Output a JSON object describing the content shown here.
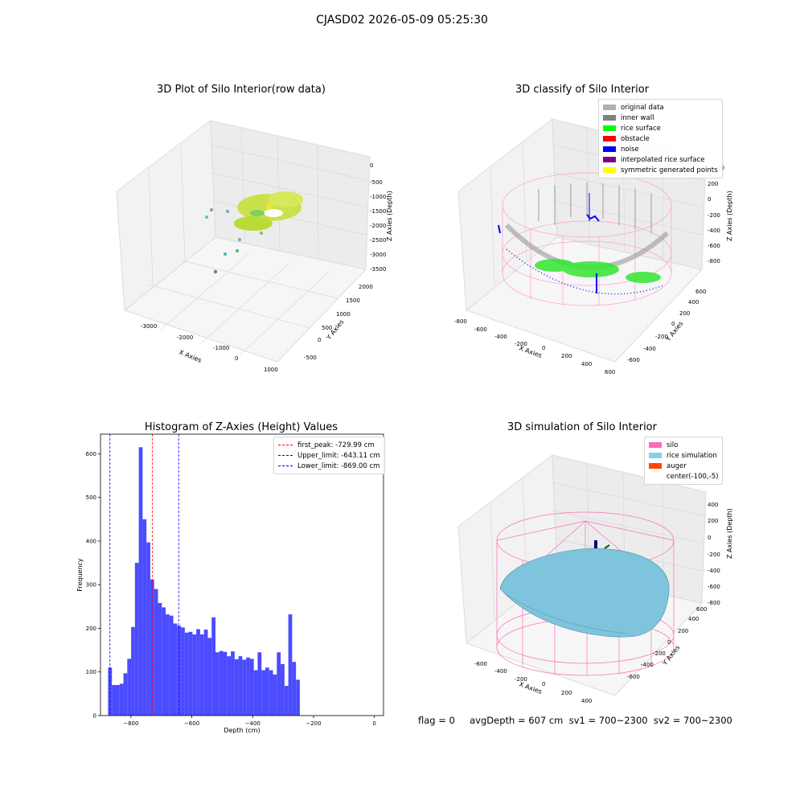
{
  "figure": {
    "title": "CJASD02 2026-05-09 05:25:30"
  },
  "panel_raw": {
    "title": "3D Plot of Silo Interior(row data)",
    "x_label": "X Axies",
    "y_label": "Y Axies",
    "z_label": "Z Axies (Depth)",
    "x_ticks": [
      "-3000",
      "-2000",
      "-1000",
      "0",
      "1000"
    ],
    "y_ticks": [
      "-500",
      "0",
      "500",
      "1000",
      "1500",
      "2000"
    ],
    "z_ticks": [
      "0",
      "-500",
      "-1000",
      "-1500",
      "-2000",
      "-2500",
      "-3000",
      "-3500"
    ]
  },
  "panel_classify": {
    "title": "3D classify of Silo Interior",
    "x_label": "X Axies",
    "y_label": "Y Axies",
    "z_label": "Z Axies (Depth)",
    "x_ticks": [
      "-800",
      "-600",
      "-400",
      "-200",
      "0",
      "200",
      "400",
      "600"
    ],
    "y_ticks": [
      "-600",
      "-400",
      "-200",
      "0",
      "200",
      "400",
      "600"
    ],
    "z_ticks": [
      "200",
      "0",
      "-200",
      "-400",
      "-600",
      "-800"
    ],
    "z_ticks_partial": "00",
    "legend": [
      {
        "label": "original data",
        "color": "#b0b0b0"
      },
      {
        "label": "inner wall",
        "color": "#808080"
      },
      {
        "label": "rice surface",
        "color": "#00ff00"
      },
      {
        "label": "obstacle",
        "color": "#ff0000"
      },
      {
        "label": "noise",
        "color": "#0000ff"
      },
      {
        "label": "interpolated rice surface",
        "color": "#800080"
      },
      {
        "label": "symmetric generated points",
        "color": "#ffff00"
      }
    ]
  },
  "panel_hist": {
    "title": "Histogram of Z-Axies (Height) Values",
    "x_label": "Depth (cm)",
    "y_label": "Frequency",
    "x_ticks": [
      "−800",
      "−600",
      "−400",
      "−200",
      "0"
    ],
    "y_ticks": [
      "0",
      "100",
      "200",
      "300",
      "400",
      "500",
      "600"
    ],
    "legend": [
      {
        "label": "first_peak: -729.99 cm",
        "color": "#ff0000"
      },
      {
        "label": "Upper_limit: -643.11 cm",
        "color": "#0000ff"
      },
      {
        "label": "Lower_limit: -869.00 cm",
        "color": "#0000ff"
      }
    ]
  },
  "panel_sim": {
    "title": "3D simulation of Silo Interior",
    "x_label": "X Axies",
    "y_label": "Y Axies",
    "z_label": "Z Axies (Depth)",
    "x_ticks": [
      "-600",
      "-400",
      "-200",
      "0",
      "200",
      "400"
    ],
    "y_ticks": [
      "-600",
      "-400",
      "-200",
      "0",
      "200",
      "400",
      "600"
    ],
    "z_ticks": [
      "400",
      "200",
      "0",
      "-200",
      "-400",
      "-600",
      "-800"
    ],
    "legend": [
      {
        "label": "silo",
        "color": "#ff69b4"
      },
      {
        "label": "rice simulation",
        "color": "#87ceeb"
      },
      {
        "label": "auger",
        "color": "#ff4500"
      },
      {
        "label": "center(-100,-5)",
        "color": ""
      }
    ]
  },
  "stats": {
    "text": "flag = 0     avgDepth = 607 cm  sv1 = 700~2300  sv2 = 700~2300"
  },
  "chart_data": [
    {
      "type": "bar",
      "title": "Histogram of Z-Axies (Height) Values",
      "xlabel": "Depth (cm)",
      "ylabel": "Frequency",
      "xlim": [
        -900,
        30
      ],
      "ylim": [
        0,
        645
      ],
      "bin_start": -875,
      "bin_width": 12.6,
      "values": [
        110,
        70,
        70,
        73,
        97,
        130,
        203,
        350,
        615,
        450,
        397,
        312,
        290,
        258,
        248,
        232,
        229,
        211,
        206,
        202,
        190,
        192,
        186,
        198,
        186,
        197,
        178,
        225,
        145,
        148,
        146,
        136,
        147,
        129,
        136,
        128,
        133,
        130,
        104,
        145,
        104,
        110,
        104,
        94,
        145,
        118,
        68,
        232,
        123,
        82
      ],
      "vlines": [
        {
          "name": "first_peak: -729.99 cm",
          "x": -729.99,
          "color": "#ff0000"
        },
        {
          "name": "Upper_limit: -643.11 cm",
          "x": -643.11,
          "color": "#0000ff"
        },
        {
          "name": "Lower_limit: -869.00 cm",
          "x": -869.0,
          "color": "#0000ff"
        }
      ],
      "bar_color": "#4b4bff"
    }
  ]
}
